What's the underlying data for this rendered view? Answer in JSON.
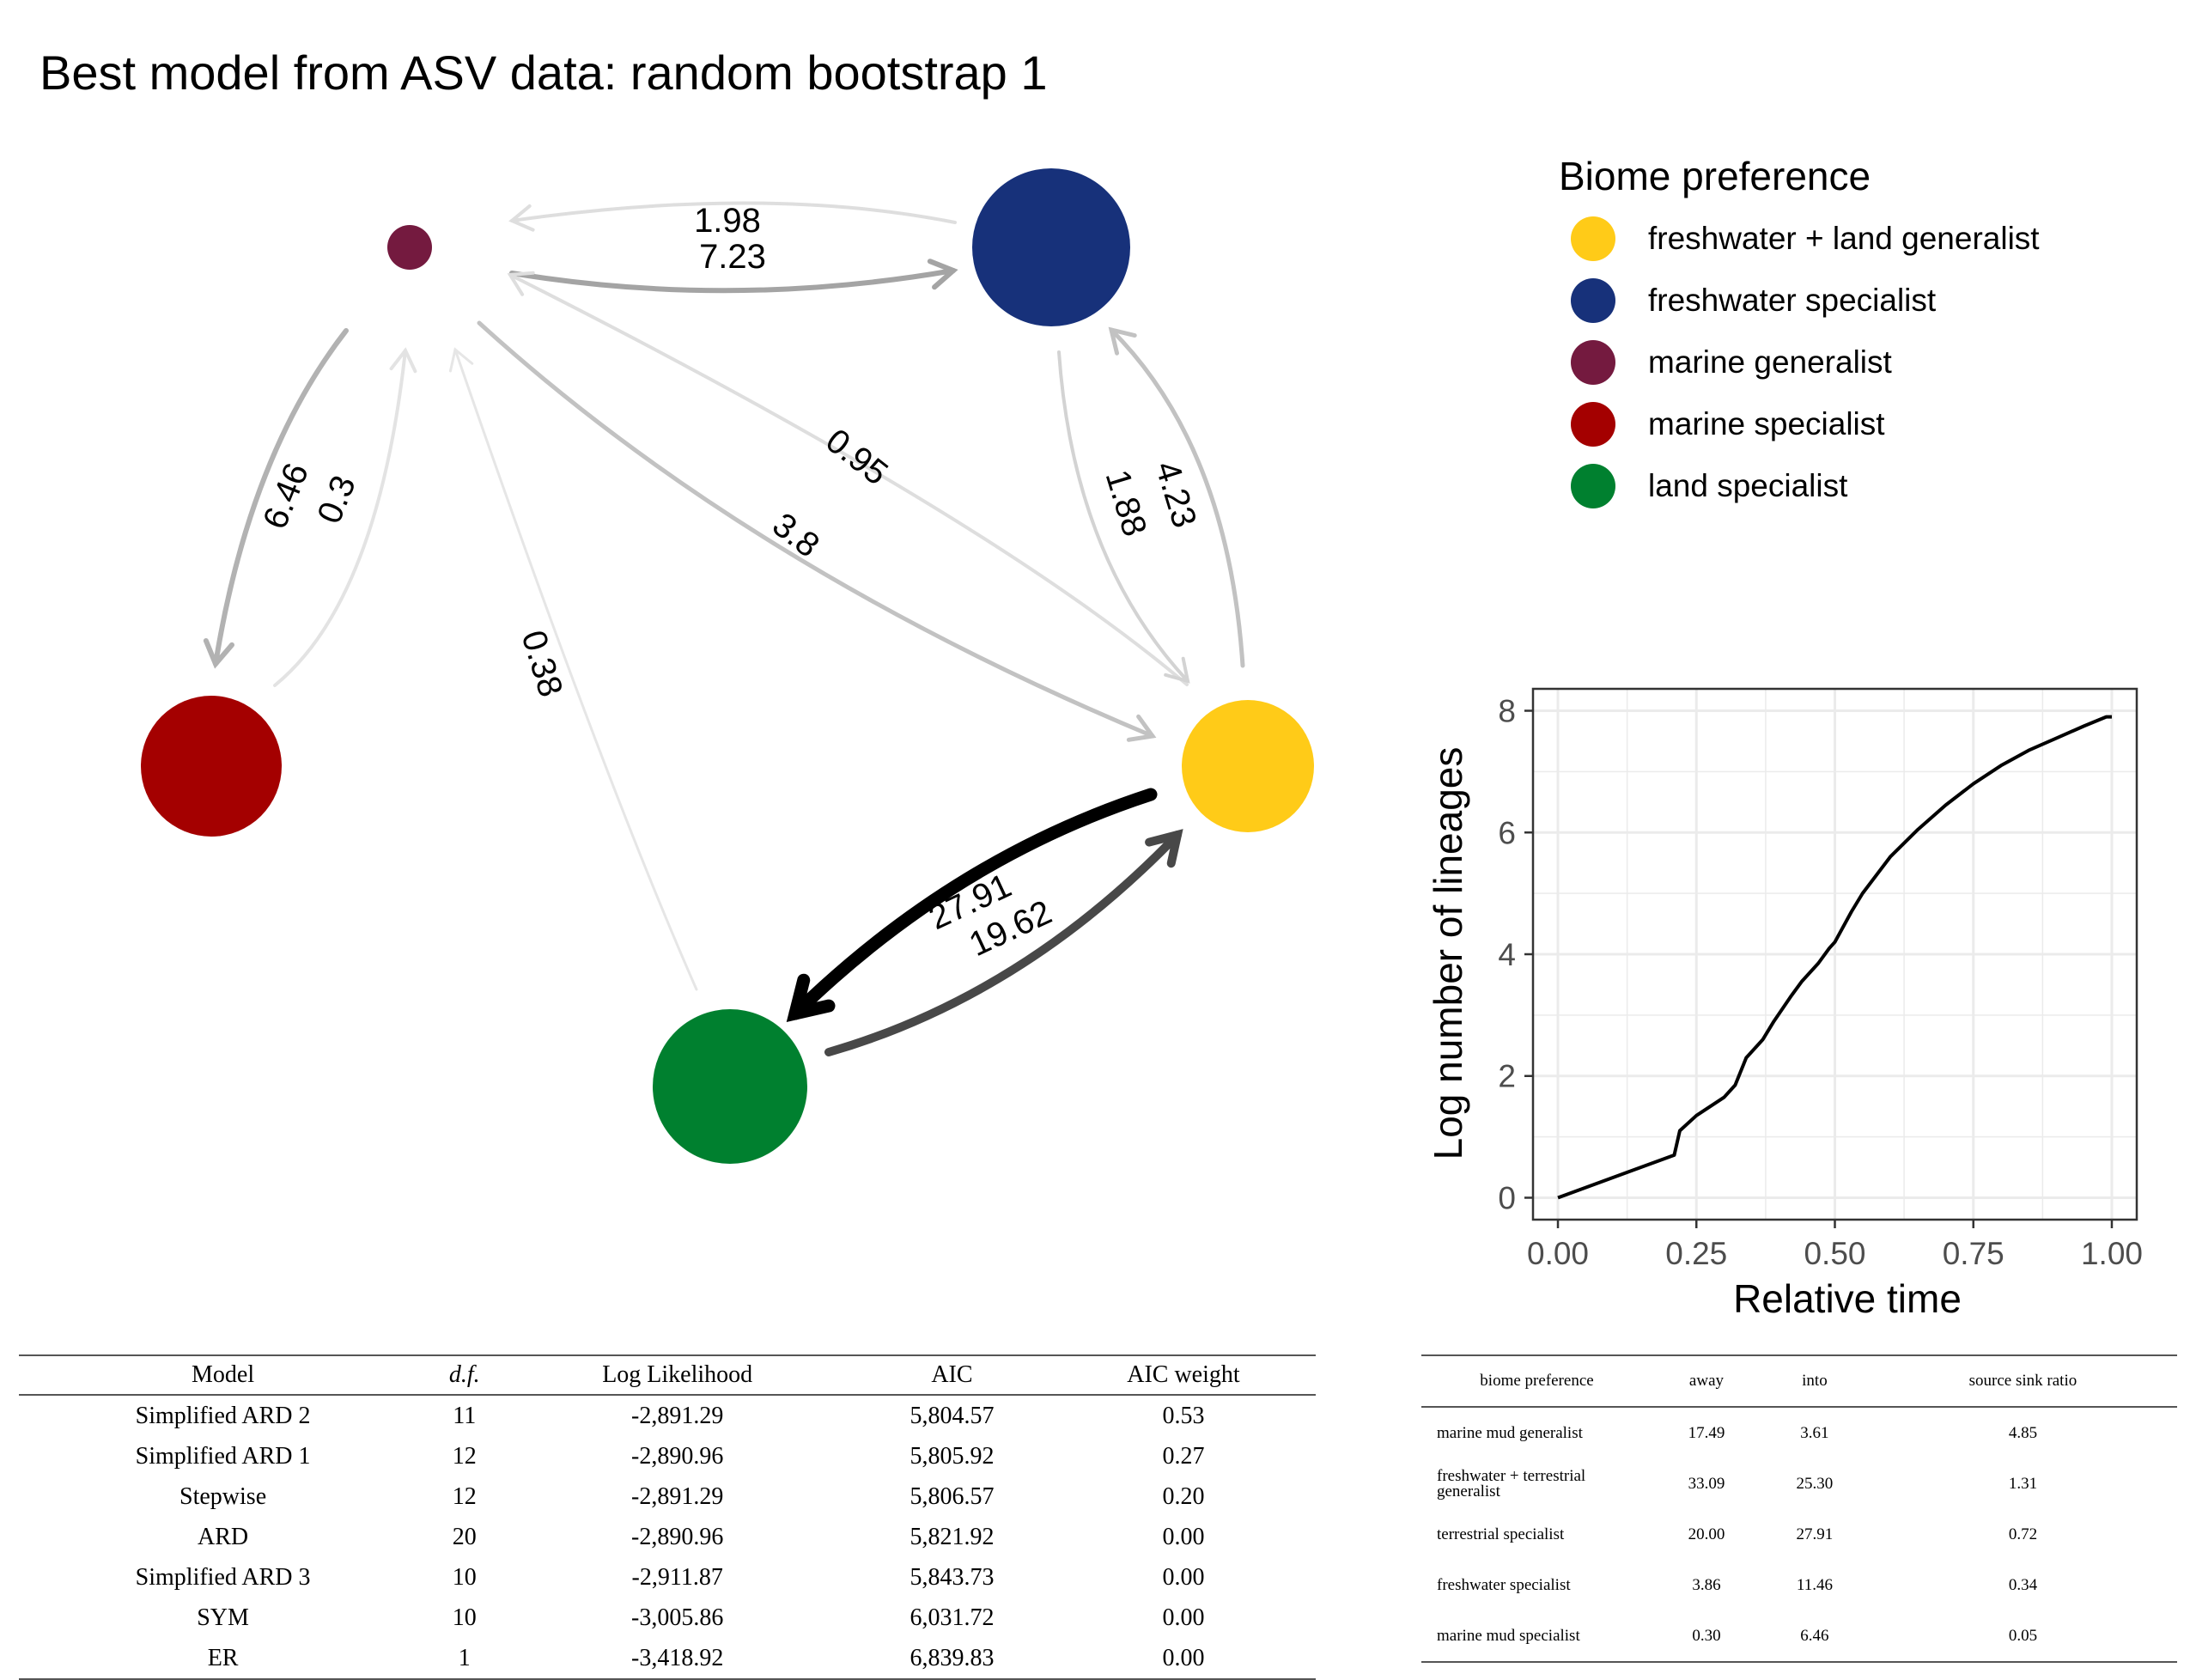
{
  "title": "Best model from ASV data: random bootstrap 1",
  "legend": {
    "title": "Biome preference",
    "items": [
      {
        "label": "freshwater + land generalist",
        "color": "#FFCB18"
      },
      {
        "label": "freshwater specialist",
        "color": "#17317A"
      },
      {
        "label": "marine generalist",
        "color": "#741A3F"
      },
      {
        "label": "marine specialist",
        "color": "#A40000"
      },
      {
        "label": "land specialist",
        "color": "#00802F"
      }
    ]
  },
  "network": {
    "nodes": [
      {
        "id": "mg",
        "label": "marine generalist",
        "color": "#741A3F"
      },
      {
        "id": "fs",
        "label": "freshwater specialist",
        "color": "#17317A"
      },
      {
        "id": "ms",
        "label": "marine specialist",
        "color": "#A40000"
      },
      {
        "id": "fl",
        "label": "freshwater + land generalist",
        "color": "#FFCB18"
      },
      {
        "id": "ls",
        "label": "land specialist",
        "color": "#00802F"
      }
    ],
    "edges": [
      {
        "from": "fs",
        "to": "mg",
        "rate": "1.98"
      },
      {
        "from": "mg",
        "to": "fs",
        "rate": "7.23"
      },
      {
        "from": "mg",
        "to": "ms",
        "rate": "6.46"
      },
      {
        "from": "ms",
        "to": "mg",
        "rate": "0.3"
      },
      {
        "from": "fl",
        "to": "mg",
        "rate": "0.95"
      },
      {
        "from": "mg",
        "to": "fl",
        "rate": "3.8"
      },
      {
        "from": "fs",
        "to": "fl",
        "rate": "1.88"
      },
      {
        "from": "fl",
        "to": "fs",
        "rate": "4.23"
      },
      {
        "from": "ls",
        "to": "mg",
        "rate": "0.38"
      },
      {
        "from": "fl",
        "to": "ls",
        "rate": "27.91"
      },
      {
        "from": "ls",
        "to": "fl",
        "rate": "19.62"
      }
    ]
  },
  "chart_data": {
    "type": "line",
    "xlabel": "Relative time",
    "ylabel": "Log number of lineages",
    "xlim": [
      0,
      1
    ],
    "ylim": [
      0,
      8
    ],
    "x_ticks": [
      "0.00",
      "0.25",
      "0.50",
      "0.75",
      "1.00"
    ],
    "y_ticks": [
      "0",
      "2",
      "4",
      "6",
      "8"
    ],
    "grid": true,
    "series": [
      {
        "x": [
          0.0,
          0.21,
          0.22,
          0.25,
          0.3,
          0.32,
          0.34,
          0.37,
          0.39,
          0.42,
          0.44,
          0.47,
          0.49,
          0.5,
          0.53,
          0.55,
          0.6,
          0.65,
          0.7,
          0.75,
          0.8,
          0.85,
          0.9,
          0.95,
          0.99,
          1.0
        ],
        "y": [
          0.0,
          0.7,
          1.1,
          1.35,
          1.65,
          1.85,
          2.3,
          2.6,
          2.9,
          3.3,
          3.55,
          3.85,
          4.1,
          4.2,
          4.7,
          5.0,
          5.6,
          6.05,
          6.45,
          6.8,
          7.1,
          7.35,
          7.55,
          7.75,
          7.9,
          7.9
        ]
      }
    ]
  },
  "model_table": {
    "headers": [
      "Model",
      "d.f.",
      "Log Likelihood",
      "AIC",
      "AIC weight"
    ],
    "rows": [
      [
        "Simplified ARD 2",
        "11",
        "-2,891.29",
        "5,804.57",
        "0.53"
      ],
      [
        "Simplified ARD 1",
        "12",
        "-2,890.96",
        "5,805.92",
        "0.27"
      ],
      [
        "Stepwise",
        "12",
        "-2,891.29",
        "5,806.57",
        "0.20"
      ],
      [
        "ARD",
        "20",
        "-2,890.96",
        "5,821.92",
        "0.00"
      ],
      [
        "Simplified ARD 3",
        "10",
        "-2,911.87",
        "5,843.73",
        "0.00"
      ],
      [
        "SYM",
        "10",
        "-3,005.86",
        "6,031.72",
        "0.00"
      ],
      [
        "ER",
        "1",
        "-3,418.92",
        "6,839.83",
        "0.00"
      ]
    ]
  },
  "biome_table": {
    "headers": [
      "biome preference",
      "away",
      "into",
      "source sink ratio"
    ],
    "rows": [
      [
        "marine mud generalist",
        "17.49",
        "3.61",
        "4.85"
      ],
      [
        "freshwater + terrestrial generalist",
        "33.09",
        "25.30",
        "1.31"
      ],
      [
        "terrestrial specialist",
        "20.00",
        "27.91",
        "0.72"
      ],
      [
        "freshwater specialist",
        "3.86",
        "11.46",
        "0.34"
      ],
      [
        "marine mud specialist",
        "0.30",
        "6.46",
        "0.05"
      ]
    ]
  }
}
